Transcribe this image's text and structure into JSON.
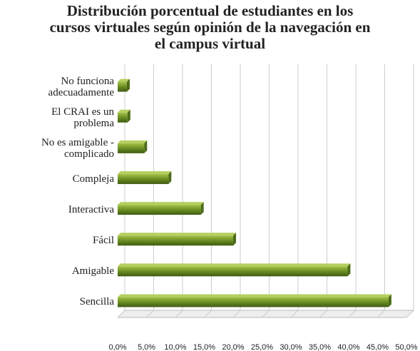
{
  "chart_data": {
    "type": "bar",
    "orientation": "horizontal",
    "title": "Distribución porcentual de estudiantes en los\ncursos virtuales según opinión de la navegación en\nel campus virtual",
    "categories": [
      "No funciona\nadecuadamente",
      "El CRAI es un\nproblema",
      "No es amigable -\ncomplicado",
      "Compleja",
      "Interactiva",
      "Fácil",
      "Amigable",
      "Sencilla"
    ],
    "values": [
      1.6,
      1.7,
      4.6,
      8.8,
      14.4,
      20.0,
      39.8,
      46.9
    ],
    "color": "#6b8e23",
    "xlim": [
      0,
      50
    ],
    "xticks": [
      {
        "value": 0,
        "label": "0,0%"
      },
      {
        "value": 5,
        "label": "5,0%"
      },
      {
        "value": 10,
        "label": "10,0%"
      },
      {
        "value": 15,
        "label": "15,0%"
      },
      {
        "value": 20,
        "label": "20,0%"
      },
      {
        "value": 25,
        "label": "25,0%"
      },
      {
        "value": 30,
        "label": "30,0%"
      },
      {
        "value": 35,
        "label": "35,0%"
      },
      {
        "value": 40,
        "label": "40,0%"
      },
      {
        "value": 45,
        "label": "45,0%"
      },
      {
        "value": 50,
        "label": "50,0%"
      }
    ],
    "grid": true
  }
}
